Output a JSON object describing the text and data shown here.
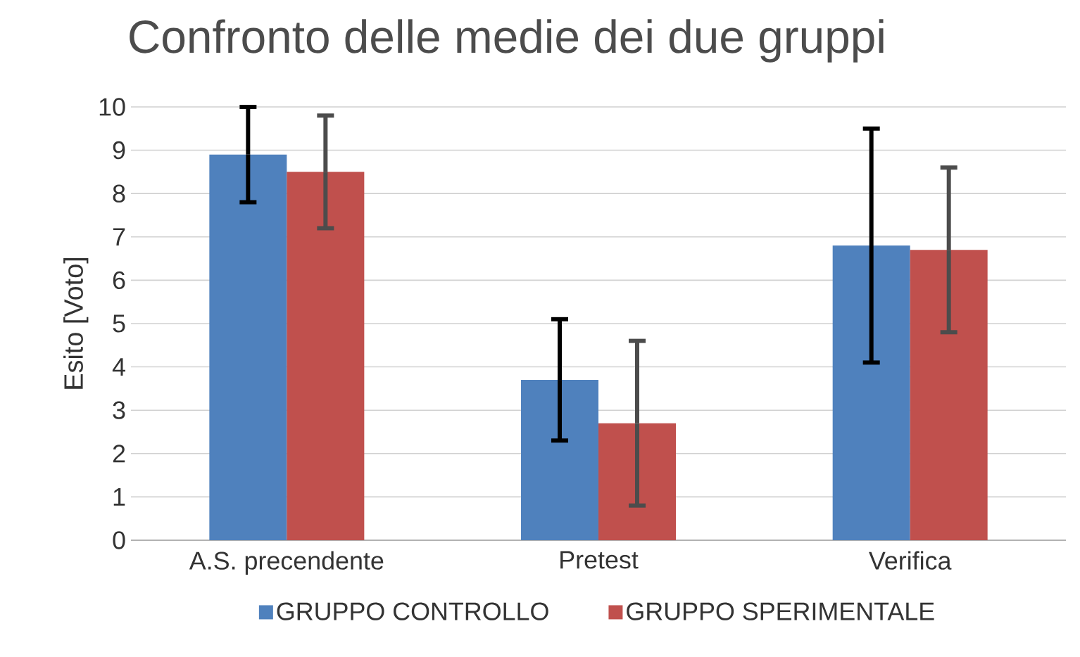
{
  "chart_data": {
    "type": "bar",
    "title": "Confronto delle medie dei due gruppi",
    "ylabel": "Esito [Voto]",
    "categories": [
      "A.S. precendente",
      "Pretest",
      "Verifica"
    ],
    "series": [
      {
        "name": "GRUPPO CONTROLLO",
        "color": "#4f81bd",
        "values": [
          8.9,
          3.7,
          6.8
        ],
        "errors": [
          1.1,
          1.4,
          2.7
        ]
      },
      {
        "name": "GRUPPO SPERIMENTALE",
        "color": "#c0504d",
        "values": [
          8.5,
          2.7,
          6.7
        ],
        "errors": [
          1.3,
          1.9,
          1.9
        ]
      }
    ],
    "ylim": [
      0,
      10
    ],
    "yticks": [
      0,
      1,
      2,
      3,
      4,
      5,
      6,
      7,
      8,
      9,
      10
    ],
    "grid": "y",
    "legend": "bottom"
  }
}
